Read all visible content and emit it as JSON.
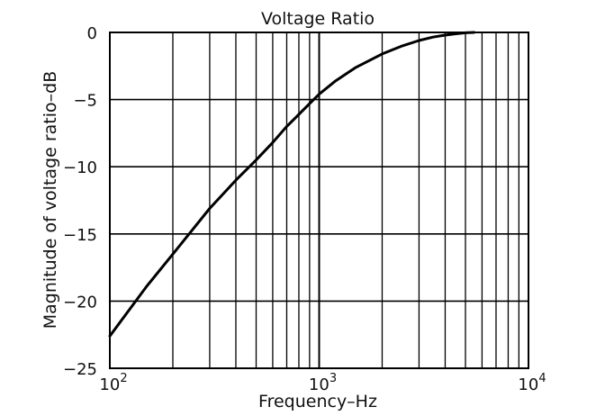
{
  "chart_data": {
    "type": "line",
    "title": "Voltage Ratio",
    "xlabel": "Frequency–Hz",
    "ylabel": "Magnitude of voltage ratio–dB",
    "x_scale": "log",
    "xlim": [
      100,
      10000
    ],
    "ylim": [
      -25,
      0
    ],
    "grid": true,
    "x_ticks": [
      {
        "base": "10",
        "exp": "2"
      },
      {
        "base": "10",
        "exp": "3"
      },
      {
        "base": "10",
        "exp": "4"
      }
    ],
    "y_ticks": [
      "0",
      "−5",
      "−10",
      "−15",
      "−20",
      "−25"
    ],
    "y_tick_values": [
      0,
      -5,
      -10,
      -15,
      -20,
      -25
    ],
    "series": [
      {
        "x": [
          100,
          150,
          200,
          300,
          400,
          500,
          600,
          700,
          800,
          900,
          1000,
          1200,
          1500,
          2000,
          2500,
          3000,
          3500,
          4000,
          4500,
          5000,
          5500
        ],
        "y": [
          -22.6,
          -18.9,
          -16.5,
          -13.1,
          -11.0,
          -9.5,
          -8.2,
          -7.0,
          -6.1,
          -5.3,
          -4.6,
          -3.6,
          -2.6,
          -1.6,
          -1.0,
          -0.6,
          -0.35,
          -0.2,
          -0.1,
          -0.03,
          0
        ],
        "color": "#000000"
      }
    ]
  }
}
